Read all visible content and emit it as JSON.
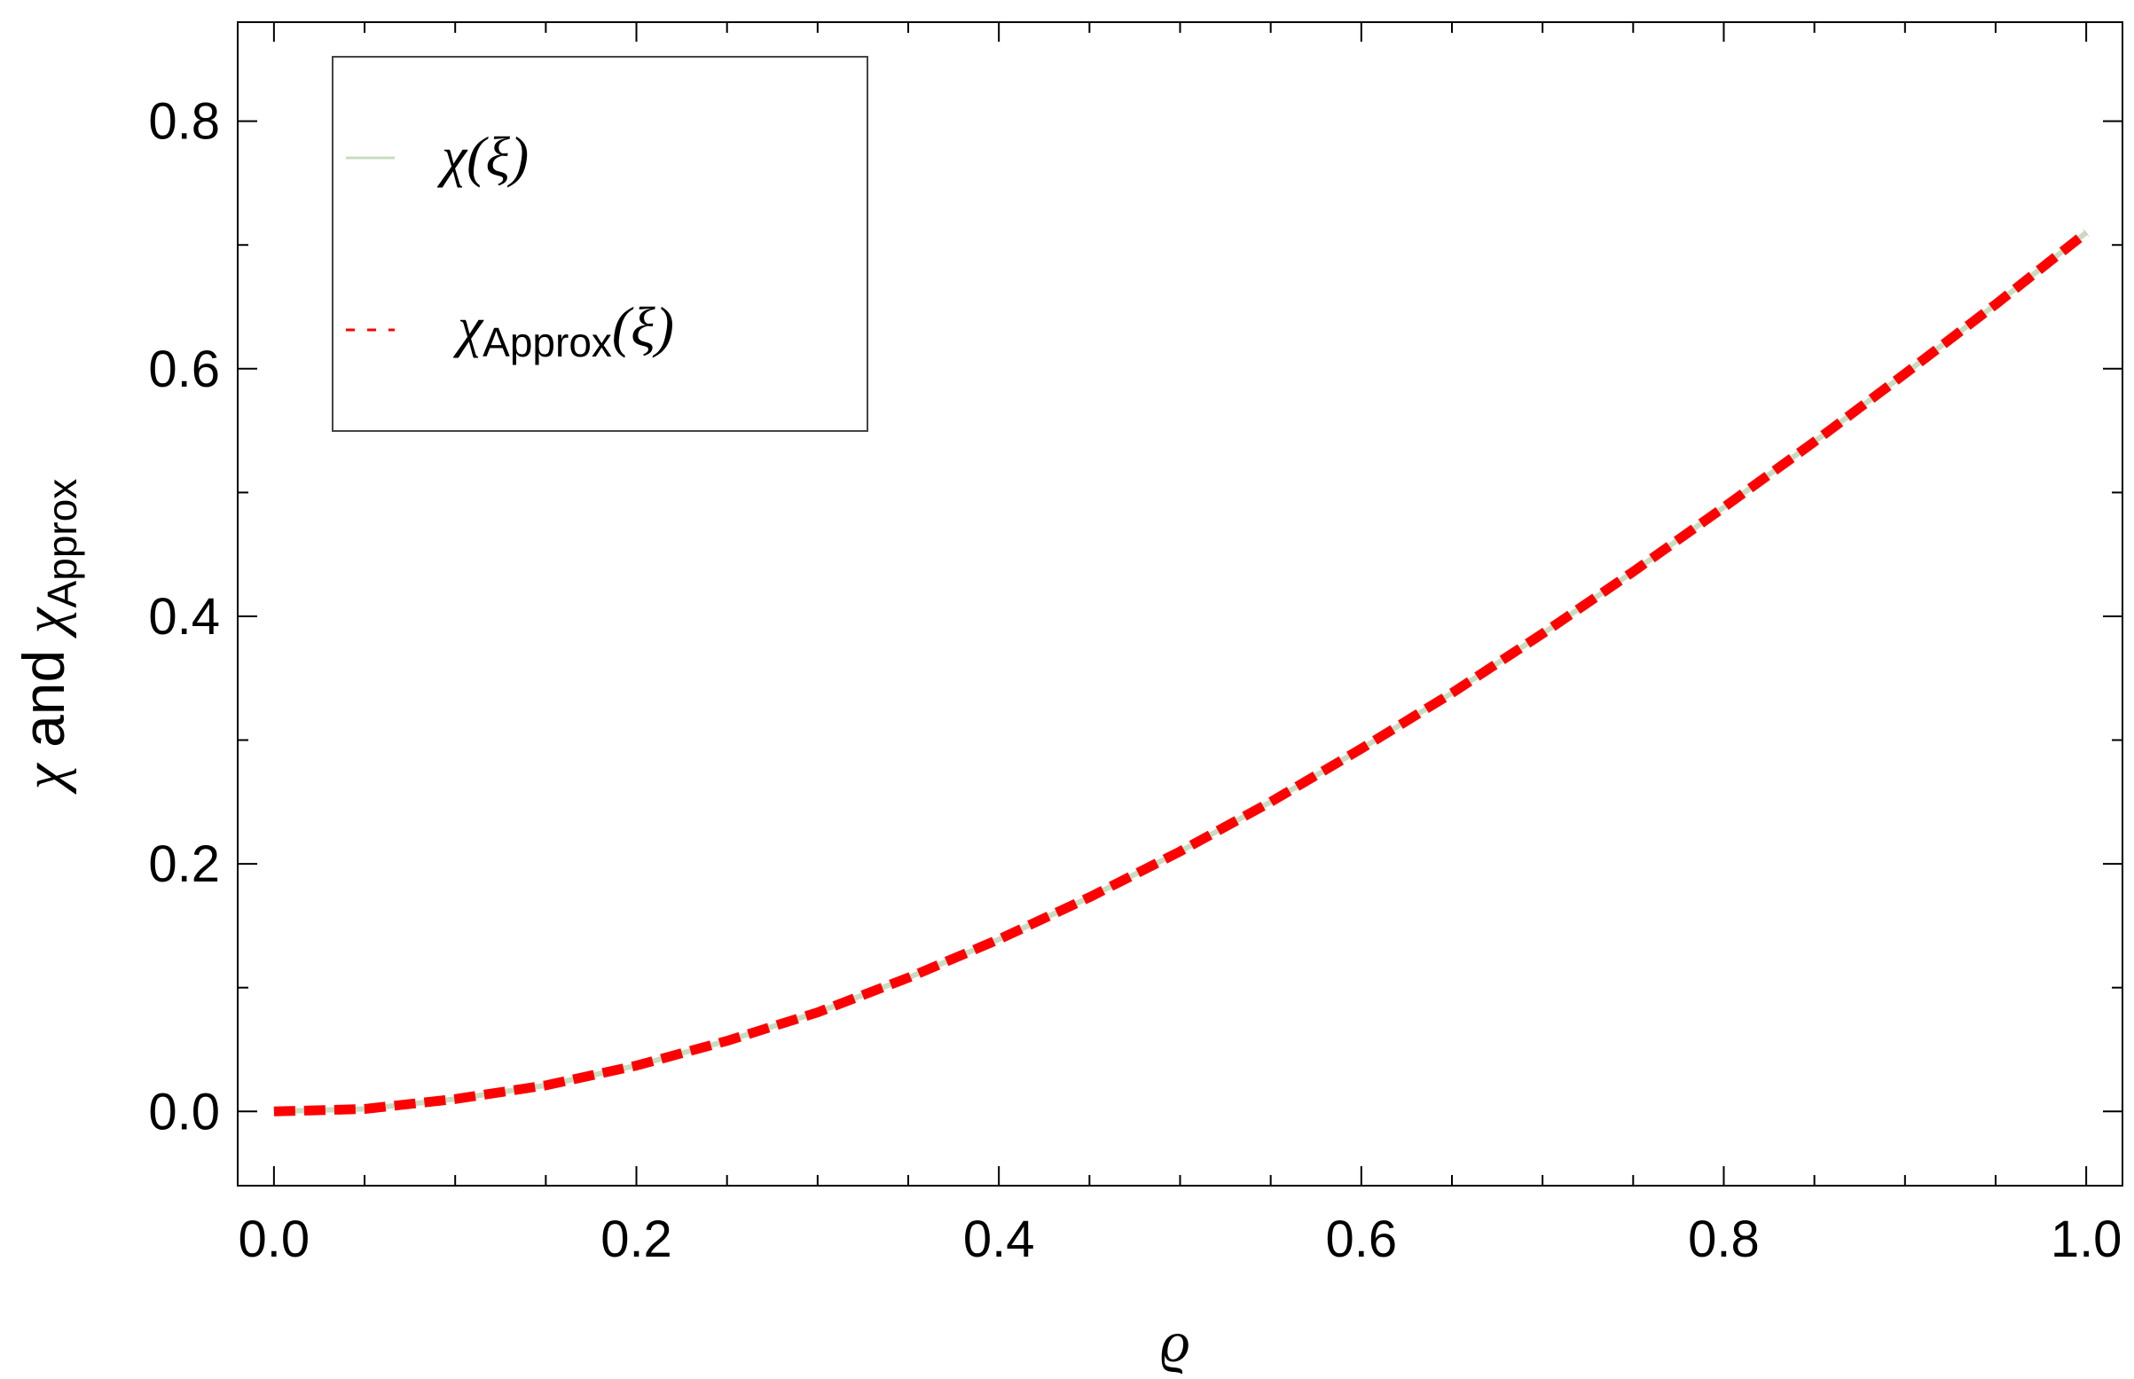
{
  "chart_data": {
    "type": "line",
    "xlabel": "ϱ",
    "ylabel": {
      "chi": "χ",
      "and": " and ",
      "chi2": "χ",
      "sub": "Approx"
    },
    "xlim": [
      -0.02,
      1.02
    ],
    "ylim": [
      -0.06,
      0.88
    ],
    "xticks": [
      0.0,
      0.2,
      0.4,
      0.6,
      0.8,
      1.0
    ],
    "xtick_labels": [
      "0.0",
      "0.2",
      "0.4",
      "0.6",
      "0.8",
      "1.0"
    ],
    "yticks": [
      0.0,
      0.2,
      0.4,
      0.6,
      0.8
    ],
    "ytick_labels": [
      "0.0",
      "0.2",
      "0.4",
      "0.6",
      "0.8"
    ],
    "grid": false,
    "legend_position": "top-left",
    "series": [
      {
        "name": "χ(ξ)",
        "color": "#c8dcc0",
        "style": "solid",
        "x": [
          0.0,
          0.05,
          0.1,
          0.15,
          0.2,
          0.25,
          0.3,
          0.35,
          0.4,
          0.45,
          0.5,
          0.55,
          0.6,
          0.65,
          0.7,
          0.75,
          0.8,
          0.85,
          0.9,
          0.95,
          1.0
        ],
        "y": [
          0.0,
          0.002,
          0.01,
          0.021,
          0.037,
          0.057,
          0.08,
          0.108,
          0.139,
          0.173,
          0.21,
          0.25,
          0.293,
          0.338,
          0.386,
          0.436,
          0.488,
          0.541,
          0.596,
          0.652,
          0.71
        ]
      },
      {
        "name": "χApprox(ξ)",
        "color": "#ff0000",
        "style": "dashed",
        "x": [
          0.0,
          0.05,
          0.1,
          0.15,
          0.2,
          0.25,
          0.3,
          0.35,
          0.4,
          0.45,
          0.5,
          0.55,
          0.6,
          0.65,
          0.7,
          0.75,
          0.8,
          0.85,
          0.9,
          0.95,
          1.0
        ],
        "y": [
          0.0,
          0.002,
          0.01,
          0.021,
          0.037,
          0.057,
          0.08,
          0.108,
          0.139,
          0.173,
          0.21,
          0.25,
          0.293,
          0.338,
          0.386,
          0.436,
          0.488,
          0.541,
          0.596,
          0.652,
          0.71
        ]
      }
    ],
    "legend": {
      "entry1": {
        "main": "χ(ξ)"
      },
      "entry2": {
        "pre": "χ",
        "sub": "Approx",
        "post": "(ξ)"
      }
    }
  }
}
